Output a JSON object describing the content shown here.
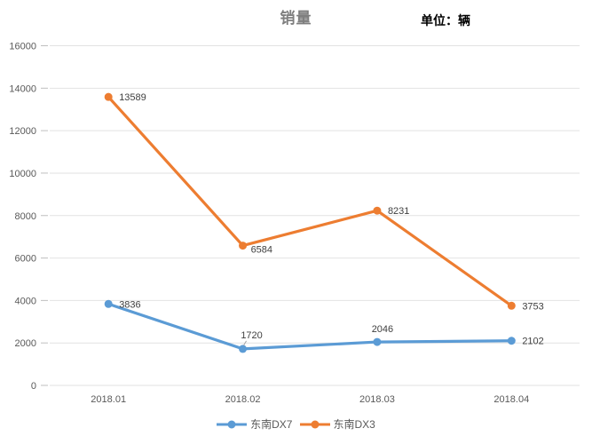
{
  "chart_data": {
    "type": "line",
    "title": "销量",
    "unit_annotation": "单位：辆",
    "categories": [
      "2018.01",
      "2018.02",
      "2018.03",
      "2018.04"
    ],
    "series": [
      {
        "name": "东南DX7",
        "color": "#5B9BD5",
        "values": [
          3836,
          1720,
          2046,
          2102
        ],
        "label_placements": [
          "right",
          "above-leader",
          "above",
          "right"
        ]
      },
      {
        "name": "东南DX3",
        "color": "#ED7D31",
        "values": [
          13589,
          6584,
          8231,
          3753
        ],
        "label_placements": [
          "right",
          "below-right",
          "right",
          "right"
        ]
      }
    ],
    "xlabel": "",
    "ylabel": "",
    "ylim": [
      0,
      16000
    ],
    "ytick_step": 2000,
    "grid": true,
    "legend_position": "bottom"
  },
  "colors": {
    "grid": "#E2E2E2",
    "tick": "#BFBFBF",
    "axis_text": "#595959",
    "data_label": "#404040",
    "leader_line": "#A6A6A6",
    "title_text": "#7F7F7F",
    "unit_text": "#000000",
    "background": "#FFFFFF"
  }
}
